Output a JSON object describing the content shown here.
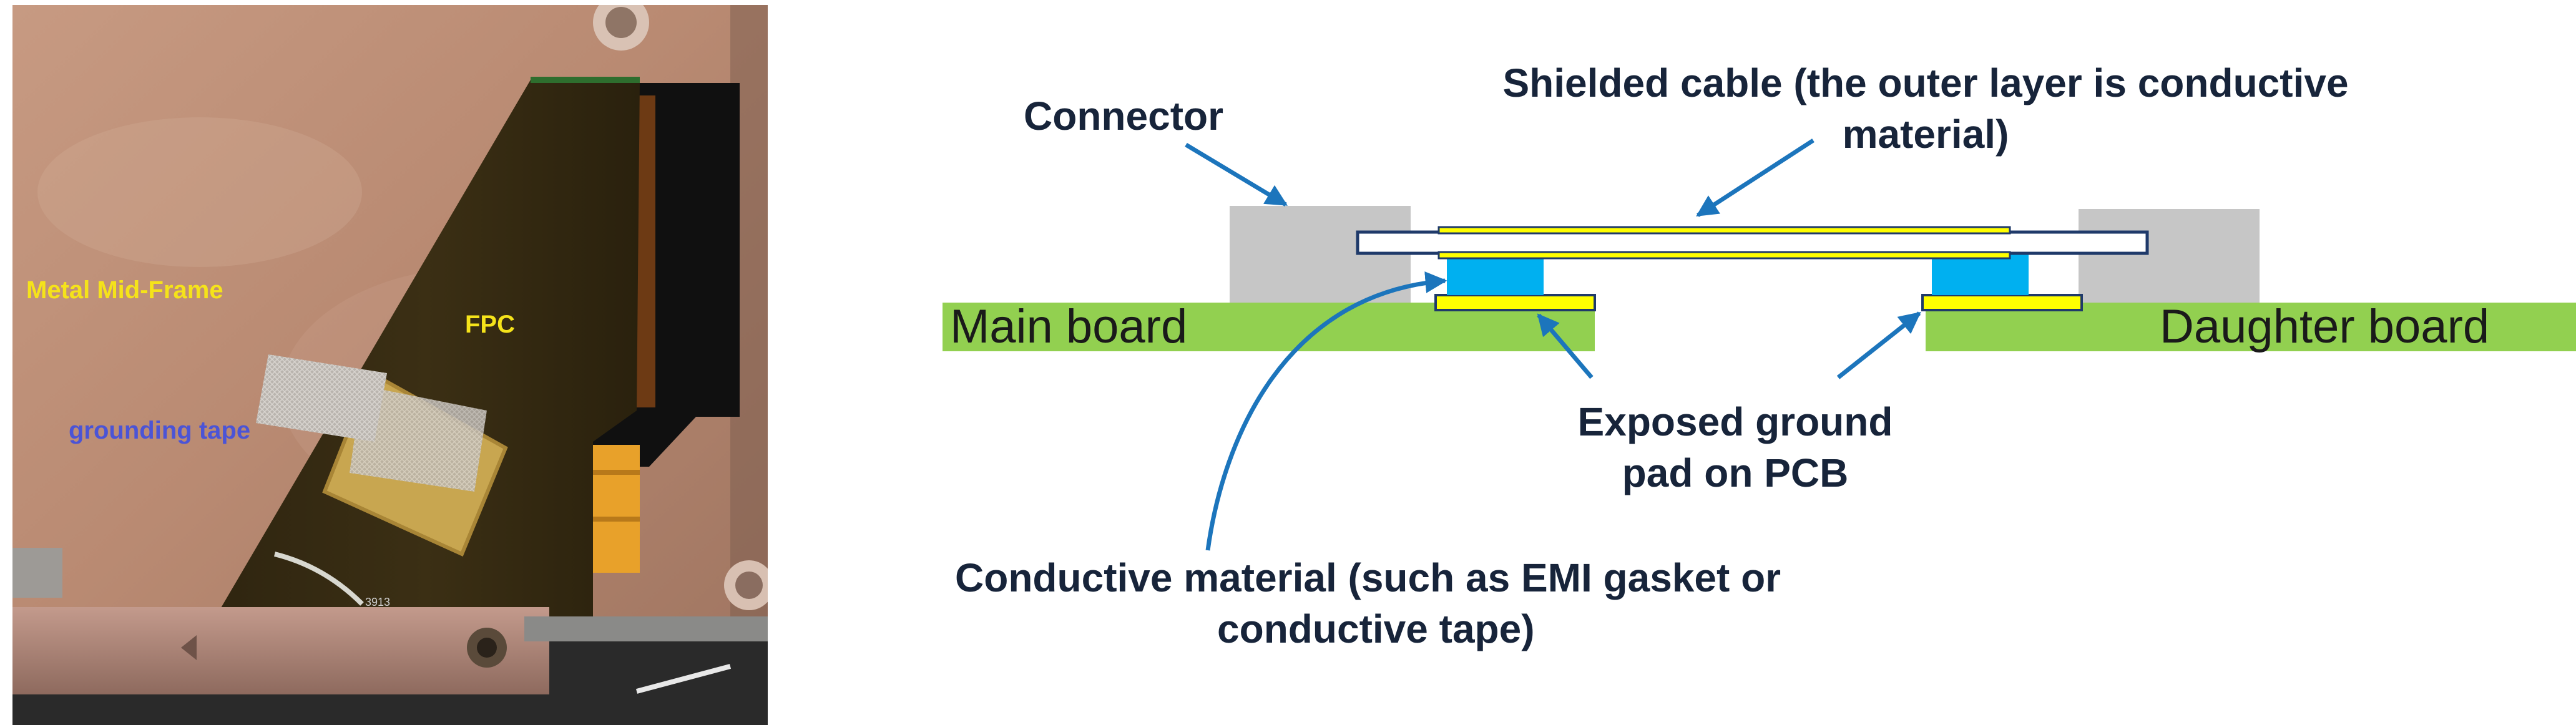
{
  "photo": {
    "labels": {
      "metal_mid_frame": "Metal Mid-Frame",
      "fpc": "FPC",
      "grounding_tape": "grounding tape"
    },
    "chip_marking": "3913",
    "label_colors": {
      "yellow": "#f5e31a",
      "blue": "#4b54d6"
    }
  },
  "diagram": {
    "labels": {
      "connector": "Connector",
      "shielded_cable_line1": "Shielded cable (the outer layer is conductive",
      "shielded_cable_line2": "material)",
      "main_board": "Main board",
      "daughter_board": "Daughter board",
      "ground_pad_line1": "Exposed ground",
      "ground_pad_line2": "pad on PCB",
      "conductive_line1": "Conductive material (such as EMI gasket or",
      "conductive_line2": "conductive tape)"
    },
    "colors": {
      "board": "#92d050",
      "connector": "#c6c6c6",
      "gasket": "#00b0f0",
      "pad": "#ffff00",
      "outline": "#1f3a6a",
      "arrow": "#1c75bc"
    }
  }
}
